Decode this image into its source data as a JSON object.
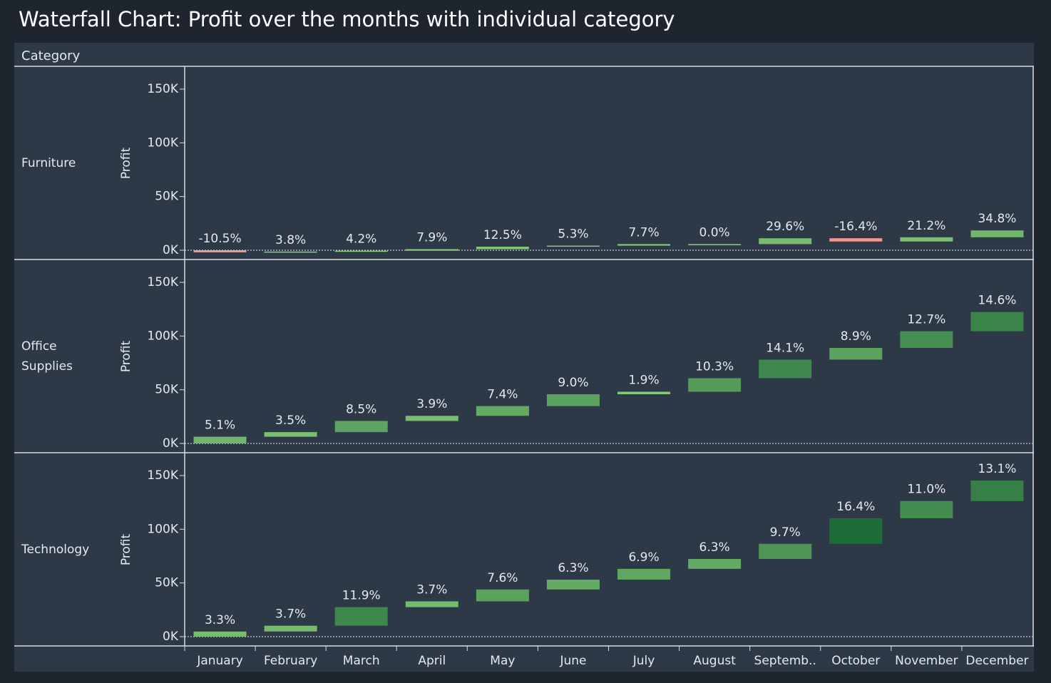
{
  "title": "Waterfall Chart: Profit over the months with individual category",
  "header": "Category",
  "color_scale": {
    "low": "#8fd17e",
    "high": "#1f6b3a",
    "negative": "#f3968f"
  },
  "chart_data": [
    {
      "type": "waterfall",
      "row_label": "Furniture",
      "y_label": "Profit",
      "categories": [
        "January",
        "February",
        "March",
        "April",
        "May",
        "June",
        "July",
        "August",
        "Septemb..",
        "October",
        "November",
        "December"
      ],
      "values": [
        -1.94,
        0.7,
        0.78,
        1.46,
        2.31,
        0.98,
        1.42,
        0.0,
        5.46,
        -3.03,
        3.91,
        6.42
      ],
      "percent_labels": [
        "-10.5%",
        "3.8%",
        "4.2%",
        "7.9%",
        "12.5%",
        "5.3%",
        "7.7%",
        "0.0%",
        "29.6%",
        "-16.4%",
        "21.2%",
        "34.8%"
      ],
      "ylim": [
        0,
        150
      ],
      "yticks": [
        {
          "value": 0,
          "label": "0K"
        },
        {
          "value": 50,
          "label": "50K"
        },
        {
          "value": 100,
          "label": "100K"
        },
        {
          "value": 150,
          "label": "150K"
        }
      ]
    },
    {
      "type": "waterfall",
      "row_label": "Office\nSupplies",
      "y_label": "Profit",
      "categories": [
        "January",
        "February",
        "March",
        "April",
        "May",
        "June",
        "July",
        "August",
        "Septemb..",
        "October",
        "November",
        "December"
      ],
      "values": [
        6.25,
        4.29,
        10.41,
        4.78,
        9.06,
        11.02,
        2.33,
        12.62,
        17.27,
        10.9,
        15.56,
        17.88
      ],
      "percent_labels": [
        "5.1%",
        "3.5%",
        "8.5%",
        "3.9%",
        "7.4%",
        "9.0%",
        "1.9%",
        "10.3%",
        "14.1%",
        "8.9%",
        "12.7%",
        "14.6%"
      ],
      "ylim": [
        0,
        150
      ],
      "yticks": [
        {
          "value": 0,
          "label": "0K"
        },
        {
          "value": 50,
          "label": "50K"
        },
        {
          "value": 100,
          "label": "100K"
        },
        {
          "value": 150,
          "label": "150K"
        }
      ]
    },
    {
      "type": "waterfall",
      "row_label": "Technology",
      "y_label": "Profit",
      "categories": [
        "January",
        "February",
        "March",
        "April",
        "May",
        "June",
        "July",
        "August",
        "Septemb..",
        "October",
        "November",
        "December"
      ],
      "values": [
        4.8,
        5.38,
        17.31,
        5.38,
        11.06,
        9.17,
        10.04,
        9.17,
        14.11,
        23.86,
        16.0,
        19.06
      ],
      "percent_labels": [
        "3.3%",
        "3.7%",
        "11.9%",
        "3.7%",
        "7.6%",
        "6.3%",
        "6.9%",
        "6.3%",
        "9.7%",
        "16.4%",
        "11.0%",
        "13.1%"
      ],
      "ylim": [
        0,
        150
      ],
      "yticks": [
        {
          "value": 0,
          "label": "0K"
        },
        {
          "value": 50,
          "label": "50K"
        },
        {
          "value": 100,
          "label": "100K"
        },
        {
          "value": 150,
          "label": "150K"
        }
      ]
    }
  ]
}
